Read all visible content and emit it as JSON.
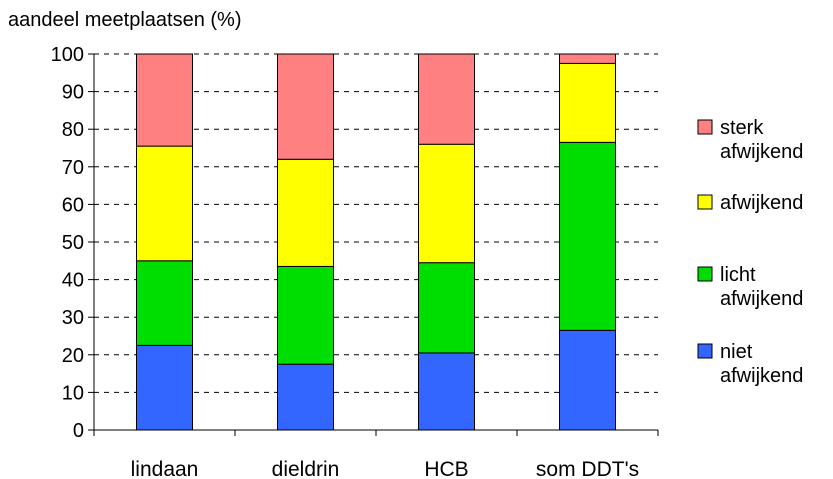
{
  "chart_data": {
    "type": "bar",
    "stacked": true,
    "ylabel": "aandeel meetplaatsen (%)",
    "ylim": [
      0,
      100
    ],
    "yticks": [
      0,
      10,
      20,
      30,
      40,
      50,
      60,
      70,
      80,
      90,
      100
    ],
    "grid": true,
    "legend_position": "right",
    "categories": [
      "lindaan",
      "dieldrin",
      "HCB",
      "som DDT's"
    ],
    "series": [
      {
        "name": "niet afwijkend",
        "lines": [
          "niet",
          "afwijkend"
        ],
        "color": "#3366ff",
        "values": [
          22.5,
          17.5,
          20.5,
          26.5
        ]
      },
      {
        "name": "licht afwijkend",
        "lines": [
          "licht",
          "afwijkend"
        ],
        "color": "#00dd00",
        "values": [
          22.5,
          26.0,
          24.0,
          50.0
        ]
      },
      {
        "name": "afwijkend",
        "lines": [
          "afwijkend"
        ],
        "color": "#ffff00",
        "values": [
          30.5,
          28.5,
          31.5,
          21.0
        ]
      },
      {
        "name": "sterk afwijkend",
        "lines": [
          "sterk",
          "afwijkend"
        ],
        "color": "#ff8080",
        "values": [
          24.5,
          28.0,
          24.0,
          2.5
        ]
      }
    ]
  }
}
